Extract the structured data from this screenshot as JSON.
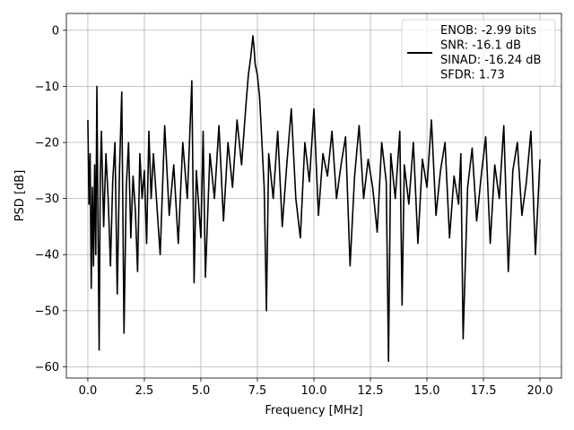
{
  "chart_data": {
    "type": "line",
    "xlabel": "Frequency [MHz]",
    "ylabel": "PSD [dB]",
    "xlim": [
      -0.95,
      20.95
    ],
    "ylim": [
      -62,
      3
    ],
    "xticks": [
      0.0,
      2.5,
      5.0,
      7.5,
      10.0,
      12.5,
      15.0,
      17.5,
      20.0
    ],
    "xtick_labels": [
      "0.0",
      "2.5",
      "5.0",
      "7.5",
      "10.0",
      "12.5",
      "15.0",
      "17.5",
      "20.0"
    ],
    "yticks": [
      0,
      -10,
      -20,
      -30,
      -40,
      -50,
      -60
    ],
    "ytick_labels": [
      "0",
      "−10",
      "−20",
      "−30",
      "−40",
      "−50",
      "−60"
    ],
    "grid": true,
    "legend_position": "top-right",
    "series": [
      {
        "color": "#000000",
        "legend_lines": [
          "ENOB: -2.99 bits",
          "SNR: -16.1 dB",
          "SINAD: -16.24 dB",
          "SFDR: 1.73"
        ],
        "x": [
          0.0,
          0.05,
          0.1,
          0.15,
          0.2,
          0.25,
          0.3,
          0.35,
          0.4,
          0.45,
          0.5,
          0.55,
          0.6,
          0.7,
          0.8,
          0.9,
          1.0,
          1.1,
          1.2,
          1.3,
          1.4,
          1.5,
          1.6,
          1.7,
          1.8,
          1.9,
          2.0,
          2.1,
          2.2,
          2.3,
          2.4,
          2.5,
          2.6,
          2.7,
          2.8,
          2.9,
          3.0,
          3.2,
          3.4,
          3.6,
          3.8,
          4.0,
          4.2,
          4.4,
          4.6,
          4.7,
          4.8,
          5.0,
          5.1,
          5.2,
          5.4,
          5.6,
          5.8,
          6.0,
          6.2,
          6.4,
          6.6,
          6.8,
          7.0,
          7.1,
          7.2,
          7.3,
          7.35,
          7.4,
          7.5,
          7.6,
          7.7,
          7.8,
          7.9,
          8.0,
          8.2,
          8.4,
          8.6,
          8.8,
          9.0,
          9.2,
          9.4,
          9.6,
          9.8,
          10.0,
          10.2,
          10.4,
          10.6,
          10.8,
          11.0,
          11.2,
          11.4,
          11.6,
          11.8,
          12.0,
          12.2,
          12.4,
          12.6,
          12.8,
          13.0,
          13.2,
          13.3,
          13.4,
          13.6,
          13.8,
          13.9,
          14.0,
          14.2,
          14.4,
          14.6,
          14.8,
          15.0,
          15.2,
          15.4,
          15.6,
          15.8,
          16.0,
          16.2,
          16.4,
          16.5,
          16.6,
          16.8,
          17.0,
          17.2,
          17.4,
          17.6,
          17.8,
          18.0,
          18.2,
          18.4,
          18.6,
          18.8,
          19.0,
          19.2,
          19.4,
          19.6,
          19.8,
          20.0
        ],
        "y": [
          -16.0,
          -31.0,
          -22.0,
          -46.0,
          -28.0,
          -42.0,
          -24.0,
          -40.0,
          -10.0,
          -35.0,
          -57.0,
          -26.0,
          -18.0,
          -35.0,
          -22.0,
          -30.0,
          -42.0,
          -27.0,
          -20.0,
          -47.0,
          -25.0,
          -11.0,
          -54.0,
          -28.0,
          -20.0,
          -37.0,
          -26.0,
          -32.0,
          -43.0,
          -22.0,
          -30.0,
          -25.0,
          -38.0,
          -18.0,
          -30.0,
          -22.0,
          -28.0,
          -40.0,
          -17.0,
          -33.0,
          -24.0,
          -38.0,
          -20.0,
          -30.0,
          -9.0,
          -45.0,
          -25.0,
          -37.0,
          -18.0,
          -44.0,
          -22.0,
          -30.0,
          -17.0,
          -34.0,
          -20.0,
          -28.0,
          -16.0,
          -24.0,
          -13.0,
          -8.0,
          -5.0,
          -1.0,
          -3.0,
          -6.0,
          -8.0,
          -12.0,
          -20.0,
          -28.0,
          -50.0,
          -22.0,
          -30.0,
          -18.0,
          -35.0,
          -24.0,
          -14.0,
          -30.0,
          -37.0,
          -20.0,
          -27.0,
          -14.0,
          -33.0,
          -22.0,
          -26.0,
          -18.0,
          -30.0,
          -24.0,
          -19.0,
          -42.0,
          -26.0,
          -17.0,
          -30.0,
          -23.0,
          -28.0,
          -36.0,
          -20.0,
          -27.0,
          -59.0,
          -22.0,
          -30.0,
          -18.0,
          -49.0,
          -24.0,
          -31.0,
          -20.0,
          -38.0,
          -23.0,
          -28.0,
          -16.0,
          -33.0,
          -25.0,
          -20.0,
          -37.0,
          -26.0,
          -31.0,
          -22.0,
          -55.0,
          -28.0,
          -21.0,
          -34.0,
          -26.0,
          -19.0,
          -38.0,
          -24.0,
          -30.0,
          -17.0,
          -43.0,
          -25.0,
          -20.0,
          -33.0,
          -27.0,
          -18.0,
          -40.0,
          -23.0
        ]
      }
    ]
  }
}
